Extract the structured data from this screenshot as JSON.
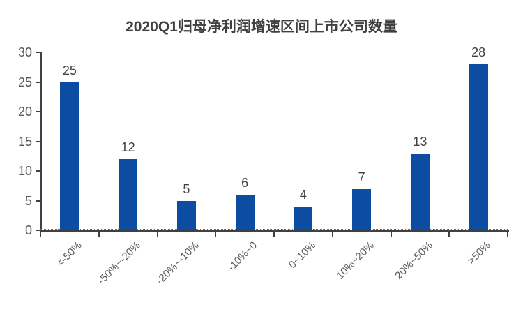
{
  "chart_data": {
    "type": "bar",
    "title": "2020Q1归母净利润增速区间上市公司数量",
    "categories": [
      "<-50%",
      "-50%~-20%",
      "-20%~-10%",
      "-10%~0",
      "0~10%",
      "10%~20%",
      "20%~50%",
      ">50%"
    ],
    "values": [
      25,
      12,
      5,
      6,
      4,
      7,
      13,
      28
    ],
    "xlabel": "",
    "ylabel": "",
    "ylim": [
      0,
      30
    ],
    "yticks": [
      0,
      5,
      10,
      15,
      20,
      25,
      30
    ],
    "grid": false,
    "legend_position": "none",
    "colors": {
      "bar": "#0C4DA2",
      "axis": "#404040",
      "tick_label": "#595959",
      "data_label": "#404040",
      "title": "#404040",
      "background": "#FFFFFF"
    }
  }
}
